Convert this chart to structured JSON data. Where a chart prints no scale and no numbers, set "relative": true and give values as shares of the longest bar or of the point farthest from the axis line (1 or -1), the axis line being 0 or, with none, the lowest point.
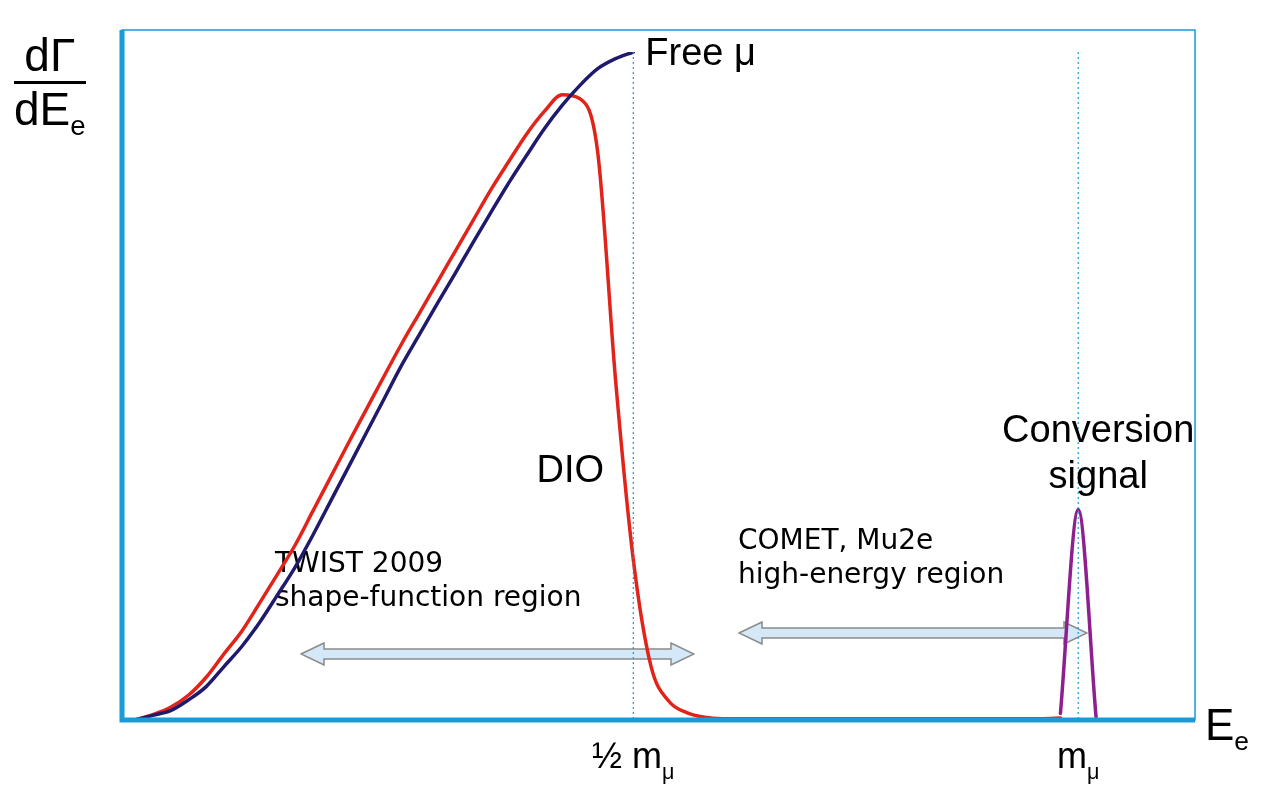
{
  "chart_data": {
    "type": "line",
    "relative": true,
    "xlabel": "E$_{e}$",
    "ylabel": "dΓ\ndE$_{e}$",
    "categories": [
      null,
      null,
      null,
      null,
      null,
      null,
      null,
      null,
      null,
      null,
      null,
      null,
      null,
      null,
      null,
      null,
      null,
      null,
      null,
      null,
      null,
      null,
      null,
      null,
      null,
      null,
      null,
      null,
      "½ m$_{μ}$",
      null,
      null,
      null,
      null,
      null,
      null,
      null,
      null,
      null,
      null,
      null,
      null,
      null,
      null,
      null,
      null,
      null,
      null,
      null,
      null,
      null,
      null,
      null,
      null,
      "m$_{μ}$",
      null,
      null,
      null,
      null,
      null,
      null
    ],
    "marker": "none",
    "grid": false,
    "legend": false,
    "series": [
      {
        "name": "Free μ",
        "color": "#1f1a6e",
        "values": [
          0,
          0.007,
          0.014,
          0.03,
          0.05,
          0.08,
          0.11,
          0.146,
          0.187,
          0.229,
          0.277,
          0.328,
          0.379,
          0.43,
          0.481,
          0.532,
          0.578,
          0.624,
          0.669,
          0.715,
          0.76,
          0.804,
          0.845,
          0.885,
          0.92,
          0.95,
          0.975,
          0.99,
          1,
          null,
          null,
          null,
          null,
          null,
          null,
          null,
          null,
          null,
          null,
          null,
          null,
          null,
          null,
          null,
          null,
          null,
          null,
          null,
          null,
          null,
          null,
          null,
          null,
          null,
          null,
          null,
          null,
          null,
          null,
          null
        ]
      },
      {
        "name": "DIO",
        "color": "#e2231a",
        "values": [
          0,
          0.008,
          0.019,
          0.037,
          0.064,
          0.099,
          0.133,
          0.175,
          0.218,
          0.262,
          0.313,
          0.364,
          0.415,
          0.465,
          0.515,
          0.564,
          0.61,
          0.656,
          0.702,
          0.748,
          0.794,
          0.836,
          0.877,
          0.911,
          0.936,
          0.93,
          0.85,
          0.51,
          0.24,
          0.08,
          0.028,
          0.011,
          0.004,
          0.002,
          0.002,
          0.002,
          0.002,
          0.002,
          0.002,
          0.002,
          0.002,
          0.002,
          0.002,
          0.002,
          0.002,
          0.002,
          0.002,
          0.002,
          0.002,
          0.002,
          0.002,
          0.002,
          0.003,
          null,
          null,
          null,
          null,
          null,
          null,
          null
        ]
      },
      {
        "name": "Conversion\nsignal",
        "color": "#8e1f8e",
        "values": [
          null,
          null,
          null,
          null,
          null,
          null,
          null,
          null,
          null,
          null,
          null,
          null,
          null,
          null,
          null,
          null,
          null,
          null,
          null,
          null,
          null,
          null,
          null,
          null,
          null,
          null,
          null,
          null,
          null,
          null,
          null,
          null,
          null,
          null,
          null,
          null,
          null,
          null,
          null,
          null,
          null,
          null,
          null,
          null,
          null,
          null,
          null,
          null,
          null,
          null,
          null,
          null,
          0.01,
          0.315,
          0.005,
          null,
          null,
          null,
          null,
          null
        ]
      }
    ],
    "ref_lines": [
      {
        "axis": "x",
        "value": "½ m$_{μ}$",
        "color": "#1a9ad6",
        "line_style": "dotted"
      },
      {
        "axis": "x",
        "value": "m$_{μ}$",
        "color": "#1a9ad6",
        "line_style": "dotted"
      }
    ],
    "annotations": [
      "TWIST 2009\nshape-function region",
      "COMET, Mu2e\nhigh-energy region"
    ]
  }
}
